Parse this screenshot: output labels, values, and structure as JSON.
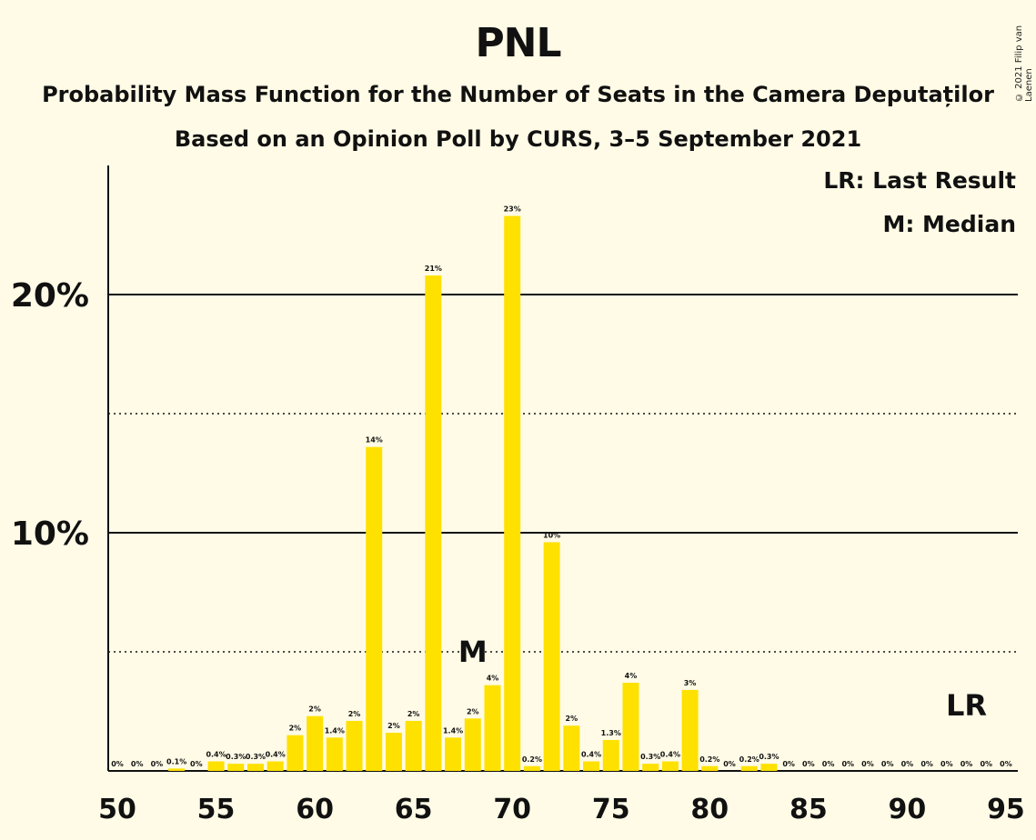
{
  "page": {
    "title": "PNL",
    "subtitle": "Probability Mass Function for the Number of Seats in the Camera Deputaților",
    "subtitle2": "Based on an Opinion Poll by CURS, 3–5 September 2021",
    "copyright": "© 2021 Filip van Laenen",
    "legend_lr": "LR: Last Result",
    "legend_m": "M: Median"
  },
  "colors": {
    "background": "#FFFBE6",
    "bar": "#FFE100",
    "text": "#111111"
  },
  "chart_data": {
    "type": "bar",
    "title": "PNL",
    "subtitle": "Probability Mass Function for the Number of Seats in the Camera Deputaților",
    "xlabel": "",
    "ylabel": "",
    "xlim": [
      50,
      95
    ],
    "ylim": [
      0,
      24.5
    ],
    "x_ticks": [
      50,
      55,
      60,
      65,
      70,
      75,
      80,
      85,
      90,
      95
    ],
    "y_ticks_solid": [
      10,
      20
    ],
    "y_ticks_dotted": [
      5,
      15
    ],
    "y_tick_labels": [
      "10%",
      "20%"
    ],
    "grid": "horizontal",
    "legend_placement": "top-right",
    "median_seat": 68,
    "last_result_seat": 93,
    "median_marker": "M",
    "last_result_marker": "LR",
    "bars": [
      {
        "x": 50,
        "value": 0,
        "label": "0%"
      },
      {
        "x": 51,
        "value": 0,
        "label": "0%"
      },
      {
        "x": 52,
        "value": 0,
        "label": "0%"
      },
      {
        "x": 53,
        "value": 0.1,
        "label": "0.1%"
      },
      {
        "x": 54,
        "value": 0,
        "label": "0%"
      },
      {
        "x": 55,
        "value": 0.4,
        "label": "0.4%"
      },
      {
        "x": 56,
        "value": 0.3,
        "label": "0.3%"
      },
      {
        "x": 57,
        "value": 0.3,
        "label": "0.3%"
      },
      {
        "x": 58,
        "value": 0.4,
        "label": "0.4%"
      },
      {
        "x": 59,
        "value": 1.5,
        "label": "2%"
      },
      {
        "x": 60,
        "value": 2.3,
        "label": "2%"
      },
      {
        "x": 61,
        "value": 1.4,
        "label": "1.4%"
      },
      {
        "x": 62,
        "value": 2.1,
        "label": "2%"
      },
      {
        "x": 63,
        "value": 13.6,
        "label": "14%"
      },
      {
        "x": 64,
        "value": 1.6,
        "label": "2%"
      },
      {
        "x": 65,
        "value": 2.1,
        "label": "2%"
      },
      {
        "x": 66,
        "value": 20.8,
        "label": "21%"
      },
      {
        "x": 67,
        "value": 1.4,
        "label": "1.4%"
      },
      {
        "x": 68,
        "value": 2.2,
        "label": "2%"
      },
      {
        "x": 69,
        "value": 3.6,
        "label": "4%"
      },
      {
        "x": 70,
        "value": 23.3,
        "label": "23%"
      },
      {
        "x": 71,
        "value": 0.2,
        "label": "0.2%"
      },
      {
        "x": 72,
        "value": 9.6,
        "label": "10%"
      },
      {
        "x": 73,
        "value": 1.9,
        "label": "2%"
      },
      {
        "x": 74,
        "value": 0.4,
        "label": "0.4%"
      },
      {
        "x": 75,
        "value": 1.3,
        "label": "1.3%"
      },
      {
        "x": 76,
        "value": 3.7,
        "label": "4%"
      },
      {
        "x": 77,
        "value": 0.3,
        "label": "0.3%"
      },
      {
        "x": 78,
        "value": 0.4,
        "label": "0.4%"
      },
      {
        "x": 79,
        "value": 3.4,
        "label": "3%"
      },
      {
        "x": 80,
        "value": 0.2,
        "label": "0.2%"
      },
      {
        "x": 81,
        "value": 0,
        "label": "0%"
      },
      {
        "x": 82,
        "value": 0.2,
        "label": "0.2%"
      },
      {
        "x": 83,
        "value": 0.3,
        "label": "0.3%"
      },
      {
        "x": 84,
        "value": 0,
        "label": "0%"
      },
      {
        "x": 85,
        "value": 0,
        "label": "0%"
      },
      {
        "x": 86,
        "value": 0,
        "label": "0%"
      },
      {
        "x": 87,
        "value": 0,
        "label": "0%"
      },
      {
        "x": 88,
        "value": 0,
        "label": "0%"
      },
      {
        "x": 89,
        "value": 0,
        "label": "0%"
      },
      {
        "x": 90,
        "value": 0,
        "label": "0%"
      },
      {
        "x": 91,
        "value": 0,
        "label": "0%"
      },
      {
        "x": 92,
        "value": 0,
        "label": "0%"
      },
      {
        "x": 93,
        "value": 0,
        "label": "0%"
      },
      {
        "x": 94,
        "value": 0,
        "label": "0%"
      },
      {
        "x": 95,
        "value": 0,
        "label": "0%"
      }
    ]
  }
}
